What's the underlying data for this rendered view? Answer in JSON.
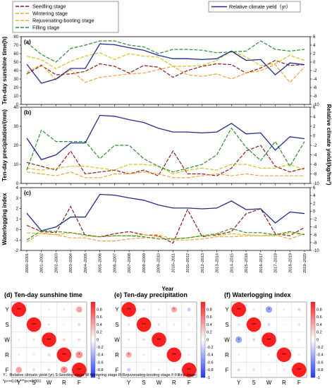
{
  "chart_data": [
    {
      "type": "line",
      "panel": "(a)",
      "ylabel_left": "Ten-day sunshine time(h)",
      "ylabel_right": "Relative climate yield(kg/hm²)",
      "ylim_left": [
        0,
        80
      ],
      "ylim_right": [
        -10,
        6
      ],
      "yticks_left": [
        "0",
        "10",
        "20",
        "30",
        "40",
        "50",
        "60",
        "70",
        "80"
      ],
      "yticks_right": [
        "-10",
        "-8",
        "-6",
        "-4",
        "-2",
        "0",
        "2",
        "4",
        "6"
      ],
      "series": [
        {
          "name": "Seedling stage",
          "axis": "left",
          "values": [
            36,
            46,
            35,
            36,
            39,
            48,
            45,
            37,
            46,
            44,
            32,
            40,
            45,
            48,
            47,
            37,
            43,
            52,
            46,
            47
          ]
        },
        {
          "name": "Wintering stage",
          "axis": "left",
          "values": [
            38,
            47,
            29,
            41,
            26,
            32,
            34,
            36,
            37,
            41,
            45,
            35,
            33,
            36,
            30,
            37,
            40,
            47,
            26,
            44
          ]
        },
        {
          "name": "Rejuvenating-booting stage",
          "axis": "left",
          "values": [
            57,
            53,
            42,
            51,
            57,
            61,
            53,
            60,
            57,
            56,
            45,
            45,
            46,
            52,
            63,
            56,
            46,
            48,
            58,
            52
          ]
        },
        {
          "name": "Filling stage",
          "axis": "left",
          "values": [
            73,
            59,
            50,
            66,
            70,
            75,
            75,
            70,
            68,
            60,
            65,
            65,
            64,
            61,
            62,
            63,
            75,
            65,
            63,
            65
          ]
        },
        {
          "name": "Relative climate yield（yr）",
          "axis": "right",
          "values": [
            -0.5,
            -5,
            -4,
            -1.5,
            -1.5,
            4.3,
            4.1,
            3.4,
            2.8,
            1.6,
            0.8,
            0.8,
            0.6,
            0.8,
            2.6,
            0.4,
            0.6,
            -3,
            -0.2,
            -0.6
          ]
        }
      ]
    },
    {
      "type": "line",
      "panel": "(b)",
      "ylabel_left": "Ten-day precipitation/(mm)",
      "ylim_left": [
        0,
        40
      ],
      "ylim_right": [
        -10,
        6
      ],
      "yticks_left": [
        "0",
        "10",
        "20",
        "30",
        "40"
      ],
      "yticks_right": [
        "-10",
        "-8",
        "-6",
        "-4",
        "-2",
        "0",
        "2",
        "4",
        "6"
      ],
      "series": [
        {
          "name": "Seedling stage",
          "axis": "left",
          "values": [
            11,
            9,
            7,
            17,
            5,
            6,
            7,
            5,
            7,
            4,
            17,
            5,
            5,
            4,
            8,
            17,
            20,
            9,
            6,
            8
          ]
        },
        {
          "name": "Wintering stage",
          "axis": "left",
          "values": [
            6,
            5,
            4,
            6,
            3,
            3,
            5,
            5,
            6,
            5,
            3,
            3,
            4,
            5,
            4,
            5,
            4,
            4,
            4,
            4
          ]
        },
        {
          "name": "Rejuvenating-booting stage",
          "axis": "left",
          "values": [
            8,
            7,
            8,
            9,
            9,
            8,
            7,
            10,
            10,
            9,
            5,
            7,
            8,
            7,
            10,
            10,
            8,
            8,
            10,
            7
          ]
        },
        {
          "name": "Filling stage",
          "axis": "left",
          "values": [
            7,
            28,
            22,
            22,
            22,
            13,
            20,
            20,
            13,
            9,
            6,
            8,
            10,
            15,
            29,
            19,
            12,
            22,
            9,
            22
          ]
        },
        {
          "name": "Relative climate yield（yr）",
          "axis": "right",
          "values": [
            -0.5,
            -5,
            -4,
            -1.5,
            -1.5,
            4.3,
            4.1,
            3.4,
            2.8,
            1.6,
            0.8,
            0.8,
            0.6,
            0.8,
            2.6,
            0.4,
            0.6,
            -3,
            -0.2,
            -0.6
          ]
        }
      ]
    },
    {
      "type": "line",
      "panel": "(c)",
      "ylabel_left": "Waterlogging index",
      "ylim_left": [
        -2,
        4
      ],
      "ylim_right": [
        -10,
        6
      ],
      "yticks_left": [
        "-2",
        "-1",
        "0",
        "1",
        "2",
        "3",
        "4"
      ],
      "yticks_right": [
        "-10",
        "-8",
        "-6",
        "-4",
        "-2",
        "0",
        "2",
        "4",
        "6"
      ],
      "series": [
        {
          "name": "Seedling stage",
          "axis": "left",
          "values": [
            0.4,
            -0.2,
            -0.3,
            2.2,
            -0.6,
            -0.7,
            -0.4,
            -0.2,
            -0.5,
            -0.6,
            -1.3,
            1.9,
            -0.7,
            -0.5,
            -0.2,
            1.5,
            2.0,
            -0.4,
            -0.6,
            0.2
          ]
        },
        {
          "name": "Wintering stage",
          "axis": "left",
          "values": [
            -1.2,
            -0.3,
            -0.5,
            -0.8,
            -0.8,
            -1.1,
            -1.1,
            -0.9,
            -0.8,
            -0.7,
            -1.0,
            -1.0,
            -0.9,
            -0.7,
            -0.7,
            -0.6,
            -0.6,
            -0.5,
            -0.9,
            -0.4
          ]
        },
        {
          "name": "Rejuvenating-booting stage",
          "axis": "left",
          "values": [
            -0.3,
            -0.4,
            -0.5,
            -0.3,
            -0.6,
            -0.7,
            -0.6,
            -0.6,
            -0.5,
            -0.5,
            -0.9,
            -0.8,
            -0.6,
            -0.6,
            -0.4,
            -0.5,
            -0.6,
            -0.6,
            -0.3,
            -0.5
          ]
        },
        {
          "name": "Filling stage",
          "axis": "left",
          "values": [
            -1.0,
            -0.1,
            -0.2,
            -0.3,
            -0.5,
            -0.7,
            -0.6,
            -0.6,
            -0.7,
            -0.9,
            -0.9,
            -0.8,
            -0.6,
            -0.4,
            0.1,
            -0.3,
            -0.3,
            -0.5,
            -0.2,
            -0.5
          ]
        },
        {
          "name": "Relative climate yield（yr）",
          "axis": "right",
          "values": [
            -0.5,
            -5,
            -4,
            -1.5,
            -1.5,
            4.3,
            4.1,
            3.4,
            2.8,
            1.6,
            0.8,
            0.8,
            0.6,
            0.8,
            2.6,
            0.4,
            0.6,
            -3,
            -0.2,
            -0.6
          ]
        }
      ]
    },
    {
      "type": "heatmap",
      "panel": "(d) Ten-day sunshine time",
      "categories": [
        "Y",
        "S",
        "W",
        "R",
        "F"
      ],
      "matrix": [
        [
          1.0,
          0.05,
          0.1,
          0.12,
          0.42
        ],
        [
          0.05,
          1.0,
          -0.15,
          0.08,
          0.2
        ],
        [
          0.1,
          -0.15,
          1.0,
          0.2,
          0.2
        ],
        [
          0.12,
          0.08,
          0.2,
          1.0,
          0.48
        ],
        [
          0.42,
          0.2,
          0.2,
          0.48,
          1.0
        ]
      ],
      "labels": [
        [
          "***",
          "",
          "",
          "",
          ""
        ],
        [
          "",
          "***",
          "",
          "",
          ""
        ],
        [
          "",
          "",
          "***",
          "",
          ""
        ],
        [
          "",
          "",
          "",
          "***",
          "*"
        ],
        [
          "",
          "",
          "",
          "*",
          "***"
        ]
      ],
      "colorbar_ticks": [
        "0.8",
        "0.6",
        "0.4",
        "0.2",
        "0",
        "-0.2",
        "-0.4",
        "-0.6",
        "-0.8",
        "-1"
      ]
    },
    {
      "type": "heatmap",
      "panel": "(e) Ten-day precipitation",
      "categories": [
        "Y",
        "S",
        "W",
        "R",
        "F"
      ],
      "matrix": [
        [
          1.0,
          -0.15,
          -0.12,
          0.4,
          -0.25
        ],
        [
          -0.15,
          1.0,
          -0.18,
          -0.12,
          0.12
        ],
        [
          -0.12,
          -0.18,
          1.0,
          -0.1,
          -0.15
        ],
        [
          0.4,
          -0.12,
          -0.1,
          1.0,
          -0.12
        ],
        [
          -0.25,
          0.12,
          -0.15,
          -0.12,
          1.0
        ]
      ],
      "labels": [
        [
          "***",
          "",
          "",
          "*",
          ""
        ],
        [
          "",
          "***",
          "",
          "",
          ""
        ],
        [
          "",
          "",
          "***",
          "",
          ""
        ],
        [
          "*",
          "",
          "",
          "***",
          ""
        ],
        [
          "",
          "",
          "",
          "",
          "***"
        ]
      ],
      "colorbar_ticks": [
        "0.8",
        "0.6",
        "0.4",
        "0.2",
        "0",
        "-0.2",
        "-0.4",
        "-0.6",
        "-0.8",
        "-1"
      ]
    },
    {
      "type": "heatmap",
      "panel": "(f) Waterlogging index",
      "categories": [
        "Y",
        "S",
        "W",
        "R",
        "F"
      ],
      "matrix": [
        [
          1.0,
          -0.15,
          -0.45,
          0.1,
          -0.2
        ],
        [
          -0.15,
          1.0,
          -0.2,
          0.05,
          0.18
        ],
        [
          -0.45,
          -0.2,
          1.0,
          0.12,
          0.1
        ],
        [
          0.1,
          0.05,
          0.12,
          1.0,
          0.15
        ],
        [
          -0.2,
          0.18,
          0.1,
          0.15,
          1.0
        ]
      ],
      "labels": [
        [
          "***",
          "",
          "*",
          "",
          ""
        ],
        [
          "",
          "***",
          "",
          "",
          ""
        ],
        [
          "*",
          "",
          "***",
          "",
          ""
        ],
        [
          "",
          "",
          "",
          "***",
          ""
        ],
        [
          "",
          "",
          "",
          "",
          "***"
        ]
      ],
      "colorbar_ticks": [
        "0.8",
        "0.6",
        "0.4",
        "0.2",
        "0",
        "-0.2",
        "-0.4",
        "-0.6",
        "-0.8",
        "-1"
      ]
    }
  ],
  "years": [
    "2000–2001",
    "2001–2002",
    "2002–2003",
    "2003–2004",
    "2004–2005",
    "2005–2006",
    "2006–2007",
    "2007–2008",
    "2008–2009",
    "2009–2010",
    "2010–2011",
    "2011–2012",
    "2012–2013",
    "2013–2014",
    "2014–2015",
    "2015–2016",
    "2016–2017",
    "2017–2018",
    "2018–2019",
    "2019–2020"
  ],
  "xlabel": "Year",
  "ylabel_right": "Relative climate yield/(kg/hm²)",
  "legend": {
    "seedling": "Seedling stage",
    "wintering": "Wintering stage",
    "rejuvenating": "Rejuvenating-booting stage",
    "filling": "Filling stage",
    "yield": "Relative climate yield（yr）"
  },
  "colors": {
    "seedling": "#8b1a1a",
    "wintering": "#f0a040",
    "rejuvenating": "#d8c020",
    "filling": "#2e8b2e",
    "yield": "#1f2b8c"
  },
  "footnote": {
    "line1": "Y：Relative climatic yield (yr)    S:Seeding stage         W:Wintering stage     R:Rejuvenating-booting stage      F:Filling stage",
    "line2": "*p<=0.05 ***p<=0.001"
  }
}
